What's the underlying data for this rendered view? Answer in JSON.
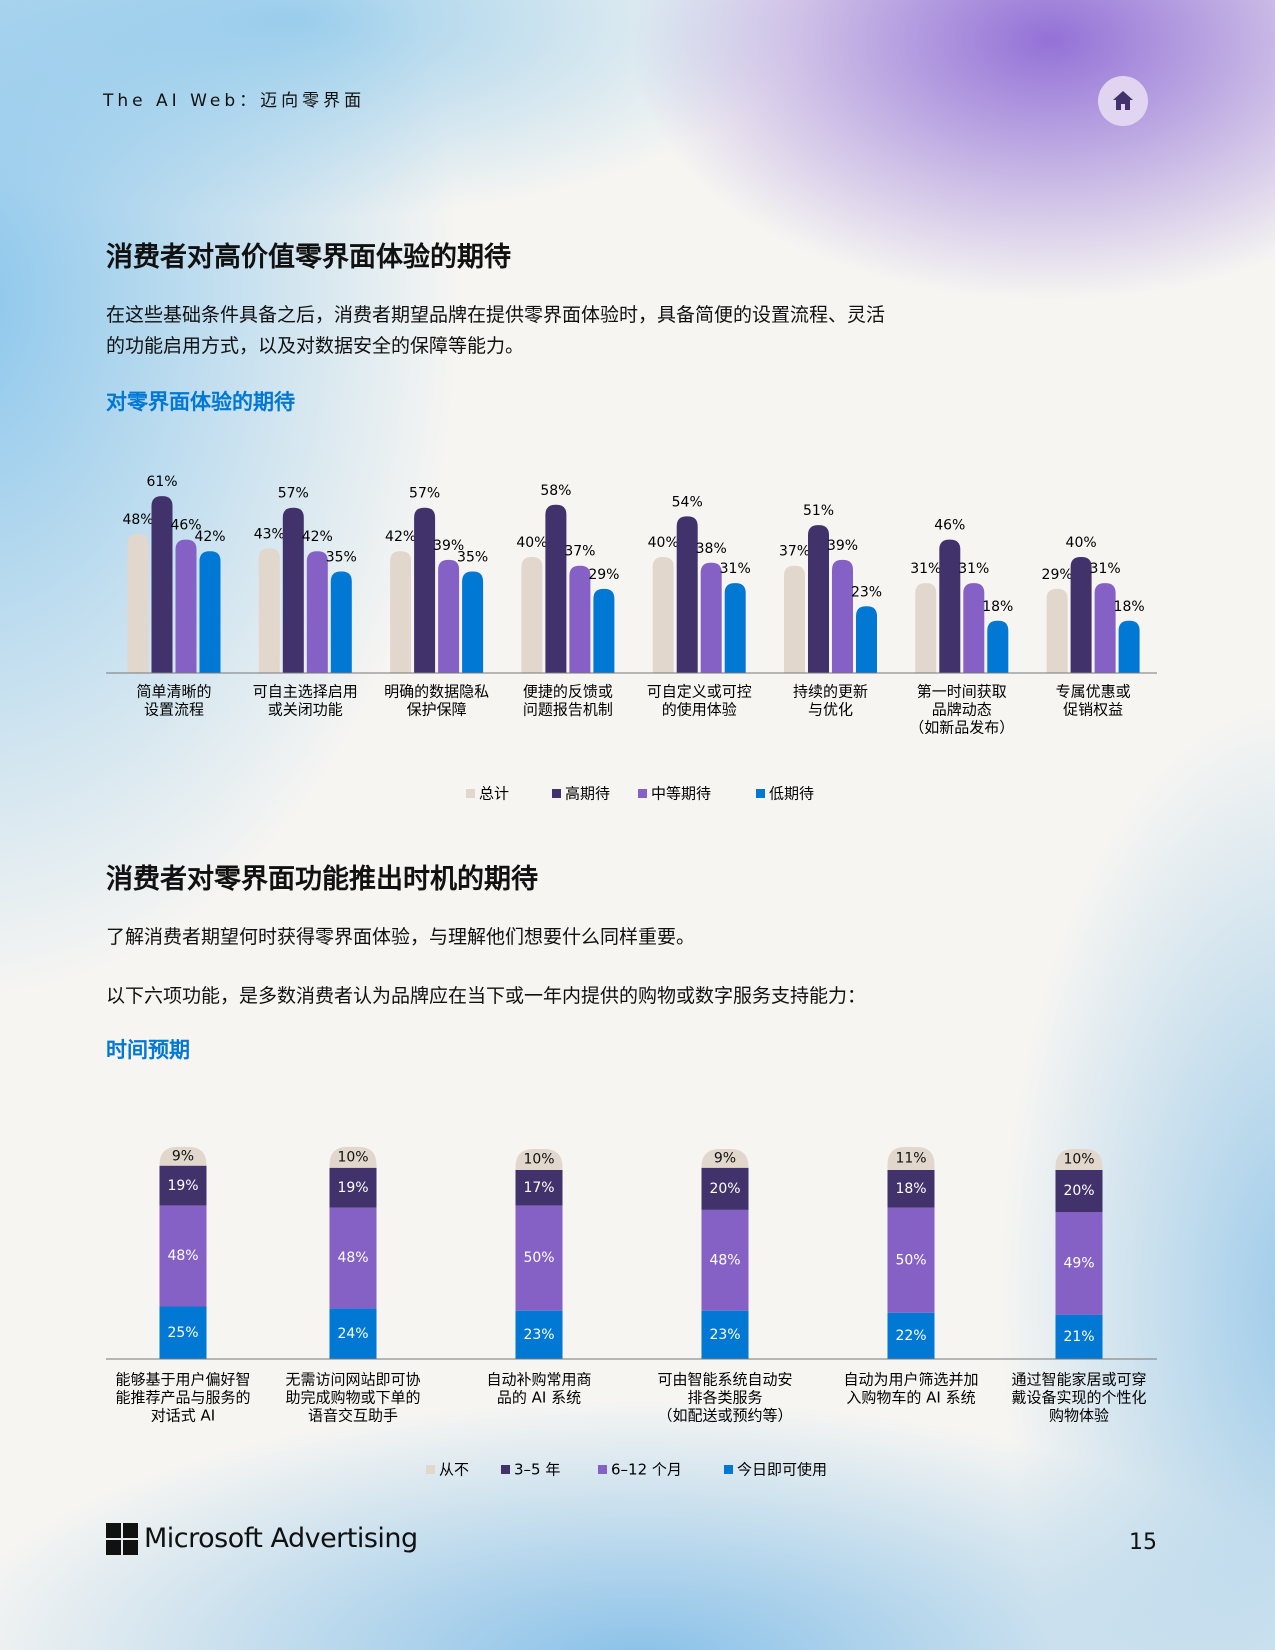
{
  "header": {
    "title": "The AI Web：迈向零界面"
  },
  "sections": [
    {
      "title": "消费者对高价值零界面体验的期待",
      "paragraphs": [
        "在这些基础条件具备之后，消费者期望品牌在提供零界面体验时，具备简便的设置流程、灵活的功能启用方式，以及对数据安全的保障等能力。"
      ]
    },
    {
      "title": "消费者对零界面功能推出时机的期待",
      "paragraphs": [
        "了解消费者期望何时获得零界面体验，与理解他们想要什么同样重要。",
        "以下六项功能，是多数消费者认为品牌应在当下或一年内提供的购物或数字服务支持能力："
      ]
    }
  ],
  "chart_data": [
    {
      "type": "bar",
      "title": "对零界面体验的期待",
      "categories": [
        [
          "简单清晰的",
          "设置流程"
        ],
        [
          "可自主选择启用",
          "或关闭功能"
        ],
        [
          "明确的数据隐私",
          "保护保障"
        ],
        [
          "便捷的反馈或",
          "问题报告机制"
        ],
        [
          "可自定义或可控",
          "的使用体验"
        ],
        [
          "持续的更新",
          "与优化"
        ],
        [
          "第一时间获取",
          "品牌动态",
          "（如新品发布）"
        ],
        [
          "专属优惠或",
          "促销权益"
        ]
      ],
      "series": [
        {
          "name": "总计",
          "color": "#e2d7cd",
          "values": [
            48,
            43,
            42,
            40,
            40,
            37,
            31,
            29
          ],
          "value_labels": [
            "48%",
            "43%",
            "42%",
            "40%",
            "40%",
            "37%",
            "31%",
            "29%"
          ]
        },
        {
          "name": "高期待",
          "color": "#41326b",
          "values": [
            61,
            57,
            57,
            58,
            54,
            51,
            46,
            40
          ],
          "value_labels": [
            "61%",
            "57%",
            "57%",
            "58%",
            "54%",
            "51%",
            "46%",
            "40%"
          ]
        },
        {
          "name": "中等期待",
          "color": "#8661c5",
          "values": [
            46,
            42,
            39,
            37,
            38,
            39,
            31,
            31
          ],
          "value_labels": [
            "46%",
            "42%",
            "39%",
            "37%",
            "38%",
            "39%",
            "31%",
            "31%"
          ]
        },
        {
          "name": "低期待",
          "color": "#0078d4",
          "values": [
            42,
            35,
            35,
            29,
            31,
            23,
            18,
            18
          ],
          "value_labels": [
            "42%",
            "35%",
            "35%",
            "29%",
            "31%",
            "23%",
            "18%",
            "18%"
          ]
        }
      ]
    },
    {
      "type": "stacked_bar",
      "title": "时间预期",
      "categories": [
        [
          "能够基于用户偏好智",
          "能推荐产品与服务的",
          "对话式 AI"
        ],
        [
          "无需访问网站即可协",
          "助完成购物或下单的",
          "语音交互助手"
        ],
        [
          "自动补购常用商",
          "品的 AI 系统"
        ],
        [
          "可由智能系统自动安",
          "排各类服务",
          "（如配送或预约等）"
        ],
        [
          "自动为用户筛选并加",
          "入购物车的 AI 系统"
        ],
        [
          "通过智能家居或可穿",
          "戴设备实现的个性化",
          "购物体验"
        ]
      ],
      "series": [
        {
          "name": "从不",
          "color": "#e2d7cd",
          "values": [
            9,
            10,
            10,
            9,
            11,
            10
          ],
          "value_labels": [
            "9%",
            "10%",
            "10%",
            "9%",
            "11%",
            "10%"
          ]
        },
        {
          "name": "3–5 年",
          "color": "#41326b",
          "values": [
            19,
            19,
            17,
            20,
            18,
            20
          ],
          "value_labels": [
            "19%",
            "19%",
            "17%",
            "20%",
            "18%",
            "20%"
          ]
        },
        {
          "name": "6–12 个月",
          "color": "#8661c5",
          "values": [
            48,
            48,
            50,
            48,
            50,
            49
          ],
          "value_labels": [
            "48%",
            "48%",
            "50%",
            "48%",
            "50%",
            "49%"
          ]
        },
        {
          "name": "今日即可使用",
          "color": "#0078d4",
          "values": [
            25,
            24,
            23,
            23,
            22,
            21
          ],
          "value_labels": [
            "25%",
            "24%",
            "23%",
            "23%",
            "22%",
            "21%"
          ]
        }
      ]
    }
  ],
  "footer": {
    "brand": "Microsoft Advertising",
    "page": 15
  }
}
